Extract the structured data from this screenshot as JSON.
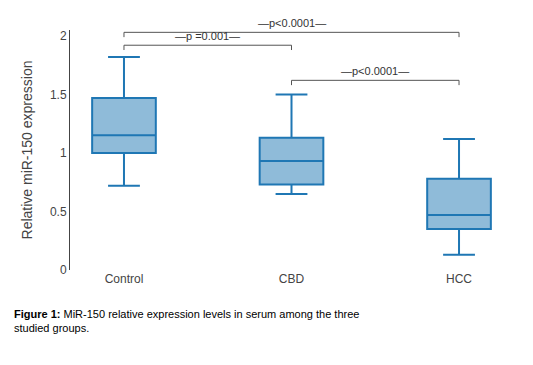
{
  "chart_data": {
    "type": "box",
    "categories": [
      "Control",
      "CBD",
      "HCC"
    ],
    "boxes": [
      {
        "whislo": 0.72,
        "q1": 1.0,
        "med": 1.15,
        "q3": 1.47,
        "whishi": 1.82
      },
      {
        "whislo": 0.65,
        "q1": 0.73,
        "med": 0.93,
        "q3": 1.13,
        "whishi": 1.5
      },
      {
        "whislo": 0.13,
        "q1": 0.35,
        "med": 0.47,
        "q3": 0.78,
        "whishi": 1.12
      }
    ],
    "ylabel": "Relative miR-150 expression",
    "ylim": [
      0,
      2.05
    ],
    "yticks": [
      0,
      0.5,
      1,
      1.5,
      2
    ],
    "grid": false,
    "annotations": [
      {
        "text": "—p =0.001—",
        "x": [
          "Control",
          "CBD"
        ],
        "y": 1.92
      },
      {
        "text": "—p<0.0001—",
        "x": [
          "Control",
          "HCC"
        ],
        "y": 2.03
      },
      {
        "text": "—p<0.0001—",
        "x": [
          "CBD",
          "HCC"
        ],
        "y": 1.62
      }
    ],
    "caption": {
      "label": "Figure 1:",
      "text": "MiR-150 relative expression levels in serum among the three studied groups."
    }
  }
}
